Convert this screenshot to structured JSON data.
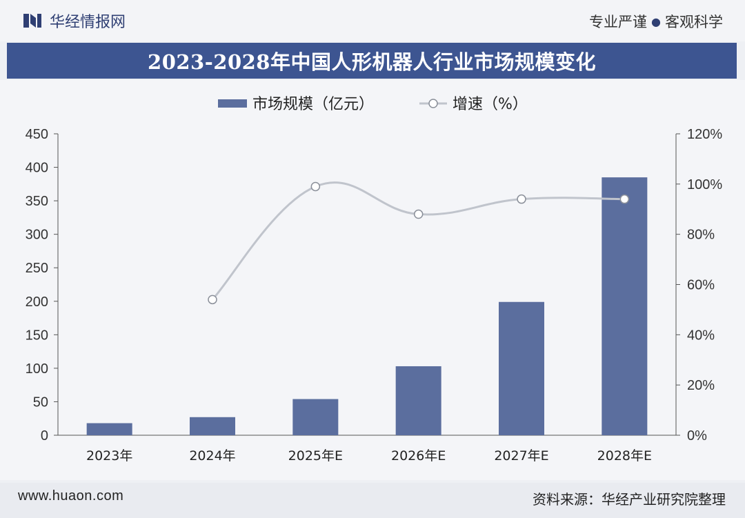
{
  "header": {
    "brand": "华经情报网",
    "slogan_left": "专业严谨",
    "slogan_dot": "●",
    "slogan_right": "客观科学"
  },
  "title": "2023-2028年中国人形机器人行业市场规模变化",
  "footer": {
    "url": "www.huaon.com",
    "source": "资料来源：华经产业研究院整理"
  },
  "colors": {
    "bar": "#5b6e9e",
    "line": "#c0c4cc",
    "marker_fill": "#ffffff",
    "marker_stroke": "#8a8f99",
    "title_band": "#3d5591"
  },
  "chart_data": {
    "type": "bar",
    "categories": [
      "2023年",
      "2024年",
      "2025年E",
      "2026年E",
      "2027年E",
      "2028年E"
    ],
    "series": [
      {
        "name": "市场规模（亿元）",
        "type": "bar",
        "axis": "left",
        "values": [
          18,
          27,
          54,
          103,
          199,
          385
        ]
      },
      {
        "name": "增速（%",
        "type": "line",
        "axis": "right",
        "values": [
          null,
          54,
          99,
          88,
          94,
          94
        ]
      }
    ],
    "y_left": {
      "min": 0,
      "max": 450,
      "ticks": [
        "0",
        "50",
        "100",
        "150",
        "200",
        "250",
        "300",
        "350",
        "400",
        "450"
      ]
    },
    "y_right": {
      "min": 0,
      "max": 120,
      "ticks": [
        "0%",
        "20%",
        "40%",
        "60%",
        "80%",
        "100%",
        "120%"
      ]
    },
    "legend_position": "top-center",
    "grid": false
  }
}
